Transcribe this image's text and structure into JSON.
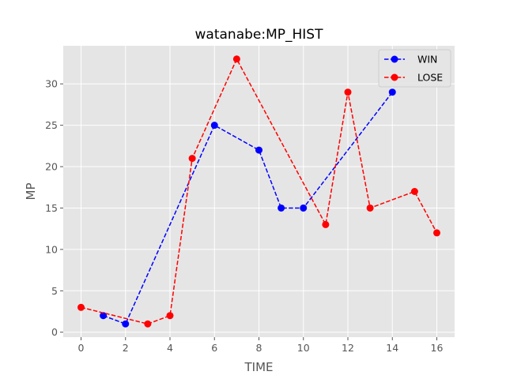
{
  "chart_data": {
    "type": "line",
    "title": "watanabe:MP_HIST",
    "xlabel": "TIME",
    "ylabel": "MP",
    "xlim": [
      -0.8,
      16.8
    ],
    "ylim": [
      -0.6,
      34.6
    ],
    "xticks": [
      0,
      2,
      4,
      6,
      8,
      10,
      12,
      14,
      16
    ],
    "yticks": [
      0,
      5,
      10,
      15,
      20,
      25,
      30
    ],
    "grid": true,
    "legend_position": "top-right",
    "series": [
      {
        "name": "WIN",
        "color": "#0000ff",
        "line_style": "dashed",
        "marker": "circle",
        "x": [
          1,
          2,
          6,
          8,
          9,
          10,
          14
        ],
        "y": [
          2,
          1,
          25,
          22,
          15,
          15,
          29
        ]
      },
      {
        "name": "LOSE",
        "color": "#ff0000",
        "line_style": "dashed",
        "marker": "circle",
        "x": [
          0,
          3,
          4,
          5,
          7,
          11,
          12,
          13,
          15,
          16
        ],
        "y": [
          3,
          1,
          2,
          21,
          33,
          13,
          29,
          15,
          17,
          12
        ]
      }
    ]
  }
}
